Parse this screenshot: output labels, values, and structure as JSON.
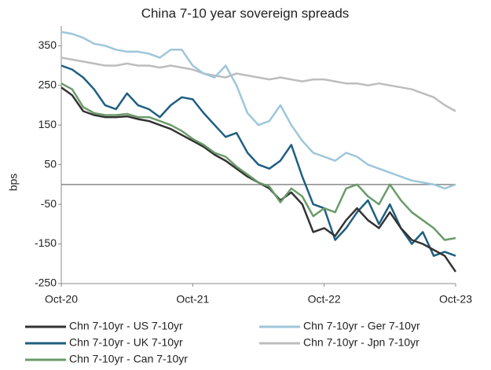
{
  "chart_data": {
    "type": "line",
    "title": "China 7-10 year sovereign spreads",
    "y_label": "bps",
    "x": [
      "2020-10",
      "2020-11",
      "2020-12",
      "2021-01",
      "2021-02",
      "2021-03",
      "2021-04",
      "2021-05",
      "2021-06",
      "2021-07",
      "2021-08",
      "2021-09",
      "2021-10",
      "2021-11",
      "2021-12",
      "2022-01",
      "2022-02",
      "2022-03",
      "2022-04",
      "2022-05",
      "2022-06",
      "2022-07",
      "2022-08",
      "2022-09",
      "2022-10",
      "2022-11",
      "2022-12",
      "2023-01",
      "2023-02",
      "2023-03",
      "2023-04",
      "2023-05",
      "2023-06",
      "2023-07",
      "2023-08",
      "2023-09",
      "2023-10"
    ],
    "xticks": [
      {
        "value": "2020-10",
        "label": "Oct-20"
      },
      {
        "value": "2021-10",
        "label": "Oct-21"
      },
      {
        "value": "2022-10",
        "label": "Oct-22"
      },
      {
        "value": "2023-10",
        "label": "Oct-23"
      }
    ],
    "ylim": [
      -250,
      400
    ],
    "yticks": [
      -250,
      -150,
      -50,
      50,
      150,
      250,
      350
    ],
    "hline": 0,
    "series": [
      {
        "name": "Chn 7-10yr - US 7-10yr",
        "color": "#333333",
        "values": [
          245,
          225,
          185,
          175,
          170,
          170,
          172,
          165,
          160,
          150,
          140,
          125,
          110,
          95,
          75,
          60,
          40,
          20,
          5,
          -10,
          -40,
          -20,
          -50,
          -120,
          -110,
          -130,
          -90,
          -60,
          -90,
          -110,
          -70,
          -110,
          -140,
          -150,
          -165,
          -180,
          -220
        ]
      },
      {
        "name": "Chn 7-10yr - Ger 7-10yr",
        "color": "#9ec6da",
        "values": [
          385,
          380,
          370,
          355,
          350,
          340,
          335,
          335,
          330,
          320,
          340,
          340,
          300,
          280,
          270,
          300,
          250,
          180,
          150,
          160,
          200,
          150,
          110,
          80,
          70,
          60,
          80,
          70,
          50,
          40,
          30,
          20,
          10,
          5,
          0,
          -10,
          0
        ]
      },
      {
        "name": "Chn 7-10yr - UK 7-10yr",
        "color": "#1f5f80",
        "values": [
          300,
          290,
          270,
          240,
          200,
          190,
          230,
          200,
          190,
          170,
          200,
          220,
          215,
          180,
          150,
          120,
          130,
          80,
          50,
          40,
          60,
          100,
          20,
          -50,
          -60,
          -140,
          -110,
          -70,
          -40,
          -100,
          -50,
          -110,
          -150,
          -120,
          -180,
          -170,
          -180
        ]
      },
      {
        "name": "Chn 7-10yr - Jpn 7-10yr",
        "color": "#bdbdbd",
        "values": [
          320,
          315,
          310,
          305,
          300,
          300,
          305,
          300,
          300,
          295,
          300,
          295,
          290,
          280,
          275,
          270,
          280,
          275,
          270,
          265,
          270,
          265,
          260,
          265,
          265,
          260,
          255,
          255,
          250,
          255,
          250,
          245,
          240,
          230,
          220,
          200,
          185
        ]
      },
      {
        "name": "Chn 7-10yr - Can 7-10yr",
        "color": "#6b9b6b",
        "values": [
          255,
          240,
          195,
          180,
          175,
          175,
          178,
          170,
          170,
          160,
          150,
          135,
          115,
          100,
          80,
          70,
          45,
          25,
          5,
          -5,
          -45,
          -10,
          -30,
          -80,
          -60,
          -70,
          -10,
          0,
          -30,
          -50,
          0,
          -40,
          -70,
          -90,
          -110,
          -140,
          -135
        ]
      }
    ]
  }
}
